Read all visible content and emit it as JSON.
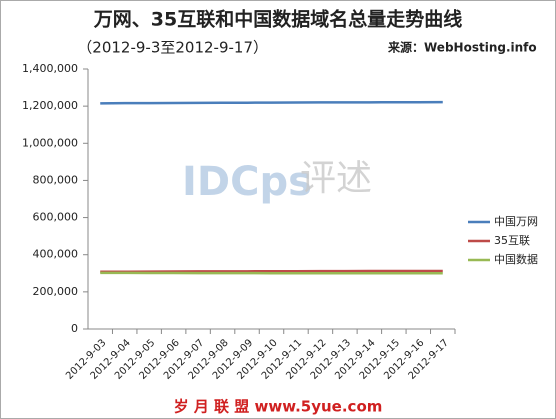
{
  "chart_data": {
    "type": "line",
    "title": "万网、35互联和中国数据域名总量走势曲线",
    "subtitle": "（2012-9-3至2012-9-17）",
    "source": "来源：WebHosting.info",
    "annotations": [
      "IDCps",
      "评述",
      "岁 月 联 盟  www.5yue.com"
    ],
    "categories": [
      "2012-9-03",
      "2012-9-04",
      "2012-9-05",
      "2012-9-06",
      "2012-9-07",
      "2012-9-08",
      "2012-9-09",
      "2012-9-10",
      "2012-9-11",
      "2012-9-12",
      "2012-9-13",
      "2012-9-14",
      "2012-9-15",
      "2012-9-16",
      "2012-9-17"
    ],
    "series": [
      {
        "name": "中国万网",
        "color": "#4a7ebb",
        "values": [
          1215000,
          1216000,
          1216500,
          1217000,
          1217500,
          1218000,
          1218500,
          1219000,
          1219500,
          1220000,
          1220000,
          1220500,
          1221000,
          1221000,
          1221500
        ]
      },
      {
        "name": "35互联",
        "color": "#be4b48",
        "values": [
          308000,
          308500,
          309000,
          309500,
          310000,
          310000,
          310500,
          311000,
          311000,
          311500,
          311500,
          312000,
          312000,
          312500,
          312500
        ]
      },
      {
        "name": "中国数据",
        "color": "#98b954",
        "values": [
          302000,
          302000,
          301500,
          301500,
          301000,
          301000,
          301000,
          300500,
          300500,
          300500,
          300000,
          300000,
          300000,
          300000,
          300000
        ]
      }
    ],
    "ylim": [
      0,
      1400000
    ],
    "yticks": [
      0,
      {
        "value": 200000,
        "label": "200,000"
      },
      {
        "value": 400000,
        "label": "400,000"
      },
      {
        "value": 600000,
        "label": "600,000"
      },
      {
        "value": 800000,
        "label": "800,000"
      },
      {
        "value": 1000000,
        "label": "1,000,000"
      },
      {
        "value": 1200000,
        "label": "1,200,000"
      },
      {
        "value": 1400000,
        "label": "1,400,000"
      }
    ],
    "legend": "right"
  }
}
